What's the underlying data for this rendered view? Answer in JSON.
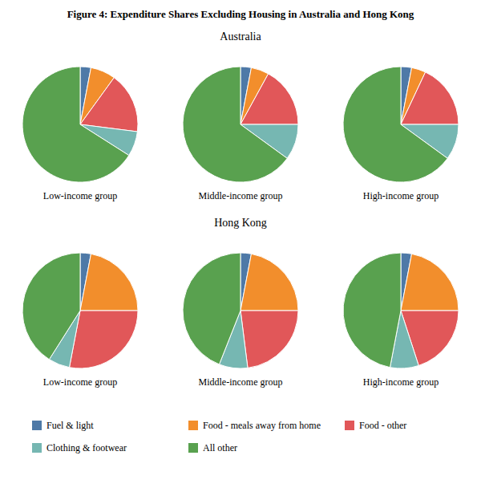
{
  "title": "Figure 4: Expenditure Shares Excluding Housing in Australia and Hong Kong",
  "categories": [
    "Fuel & light",
    "Food - meals away from home",
    "Food - other",
    "Clothing & footwear",
    "All other"
  ],
  "legend": "bottom",
  "chart_data": [
    {
      "type": "pie",
      "title": "Australia",
      "series": [
        {
          "name": "Low-income group",
          "values": [
            0.03,
            0.07,
            0.17,
            0.07,
            0.66
          ]
        },
        {
          "name": "Middle-income group",
          "values": [
            0.03,
            0.05,
            0.17,
            0.1,
            0.65
          ]
        },
        {
          "name": "High-income group",
          "values": [
            0.03,
            0.04,
            0.18,
            0.1,
            0.65
          ]
        }
      ]
    },
    {
      "type": "pie",
      "title": "Hong Kong",
      "series": [
        {
          "name": "Low-income group",
          "values": [
            0.03,
            0.22,
            0.28,
            0.06,
            0.41
          ]
        },
        {
          "name": "Middle-income group",
          "values": [
            0.03,
            0.22,
            0.23,
            0.08,
            0.44
          ]
        },
        {
          "name": "High-income group",
          "values": [
            0.03,
            0.22,
            0.2,
            0.08,
            0.47
          ]
        }
      ]
    }
  ]
}
